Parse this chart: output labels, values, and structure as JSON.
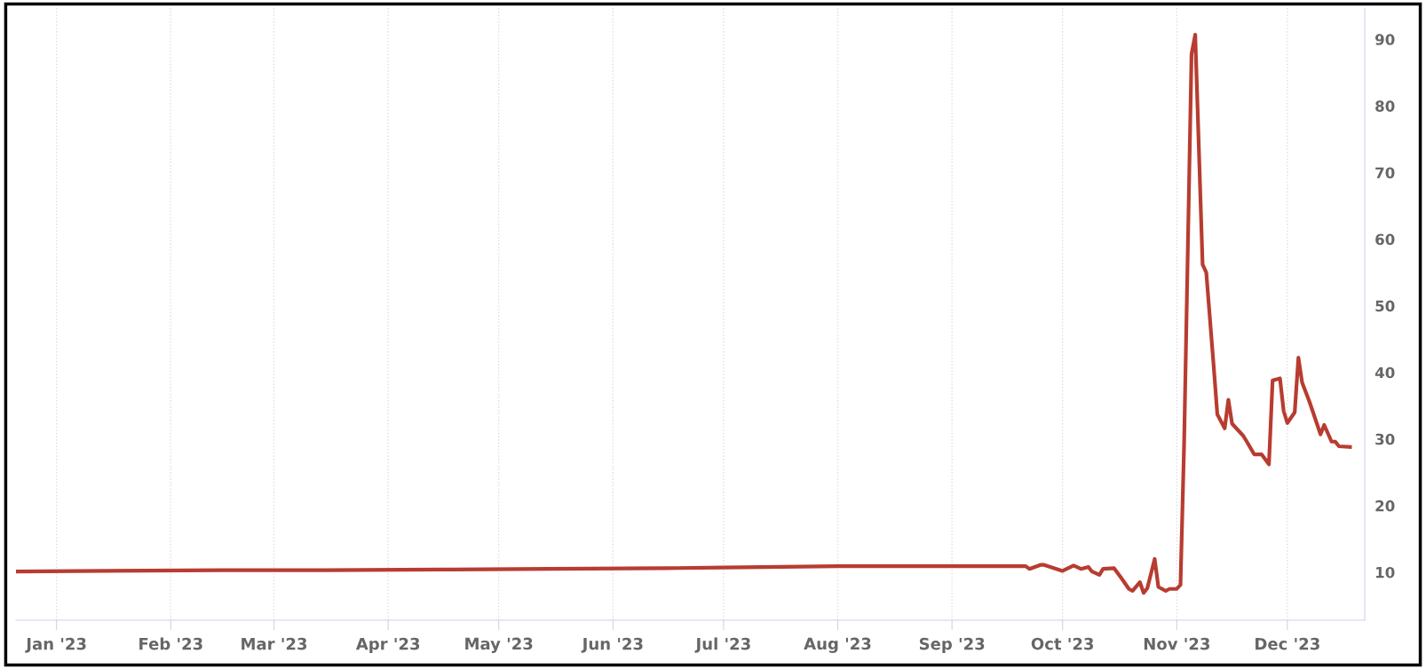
{
  "chart_data": {
    "type": "line",
    "x": [
      "2022-12-21",
      "2023-01-15",
      "2023-02-15",
      "2023-03-15",
      "2023-04-15",
      "2023-05-15",
      "2023-06-15",
      "2023-07-01",
      "2023-08-01",
      "2023-09-01",
      "2023-09-21",
      "2023-09-22",
      "2023-09-25",
      "2023-09-26",
      "2023-10-01",
      "2023-10-04",
      "2023-10-06",
      "2023-10-08",
      "2023-10-09",
      "2023-10-11",
      "2023-10-12",
      "2023-10-15",
      "2023-10-17",
      "2023-10-19",
      "2023-10-20",
      "2023-10-22",
      "2023-10-23",
      "2023-10-24",
      "2023-10-26",
      "2023-10-27",
      "2023-10-29",
      "2023-10-30",
      "2023-11-01",
      "2023-11-02",
      "2023-11-03",
      "2023-11-05",
      "2023-11-06",
      "2023-11-08",
      "2023-11-09",
      "2023-11-11",
      "2023-11-12",
      "2023-11-14",
      "2023-11-15",
      "2023-11-16",
      "2023-11-19",
      "2023-11-20",
      "2023-11-22",
      "2023-11-24",
      "2023-11-26",
      "2023-11-27",
      "2023-11-29",
      "2023-11-30",
      "2023-12-01",
      "2023-12-03",
      "2023-12-04",
      "2023-12-05",
      "2023-12-07",
      "2023-12-10",
      "2023-12-11",
      "2023-12-13",
      "2023-12-14",
      "2023-12-15",
      "2023-12-18"
    ],
    "series": [
      {
        "color": "#b83c30",
        "values": [
          10.1,
          10.2,
          10.3,
          10.3,
          10.4,
          10.5,
          10.6,
          10.7,
          10.9,
          10.9,
          10.9,
          10.5,
          11.1,
          11.1,
          10.2,
          11.0,
          10.5,
          10.8,
          10.1,
          9.6,
          10.5,
          10.6,
          9.1,
          7.5,
          7.2,
          8.5,
          6.9,
          7.6,
          12.0,
          7.8,
          7.2,
          7.5,
          7.5,
          8.1,
          29.6,
          87.8,
          90.7,
          56.2,
          55.0,
          41.0,
          33.7,
          31.6,
          35.9,
          32.3,
          30.5,
          29.6,
          27.7,
          27.7,
          26.2,
          38.8,
          39.1,
          34.2,
          32.4,
          34.0,
          42.2,
          38.5,
          35.6,
          30.7,
          32.1,
          29.6,
          29.6,
          28.9,
          28.8
        ]
      }
    ],
    "xlim": [
      "2022-12-21",
      "2023-12-22"
    ],
    "xticks": [
      {
        "value": "2023-01-01",
        "label": "Jan '23"
      },
      {
        "value": "2023-02-01",
        "label": "Feb '23"
      },
      {
        "value": "2023-03-01",
        "label": "Mar '23"
      },
      {
        "value": "2023-04-01",
        "label": "Apr '23"
      },
      {
        "value": "2023-05-01",
        "label": "May '23"
      },
      {
        "value": "2023-06-01",
        "label": "Jun '23"
      },
      {
        "value": "2023-07-01",
        "label": "Jul '23"
      },
      {
        "value": "2023-08-01",
        "label": "Aug '23"
      },
      {
        "value": "2023-09-01",
        "label": "Sep '23"
      },
      {
        "value": "2023-10-01",
        "label": "Oct '23"
      },
      {
        "value": "2023-11-01",
        "label": "Nov '23"
      },
      {
        "value": "2023-12-01",
        "label": "Dec '23"
      }
    ],
    "ylim": [
      2.8,
      94.7
    ],
    "yticks": [
      10,
      20,
      30,
      40,
      50,
      60,
      70,
      80,
      90
    ],
    "grid": "x",
    "line_style": "solid"
  }
}
